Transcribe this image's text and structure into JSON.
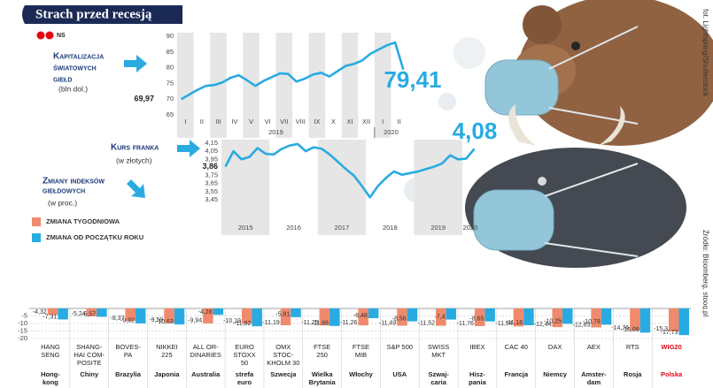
{
  "header": {
    "title": "Strach przed recesją",
    "author": "NS"
  },
  "credits": {
    "photo": "fot. Lightspring/Shutterstock",
    "source": "Źródło: Bloomberg, stooq.pl"
  },
  "chart_data": [
    {
      "type": "line",
      "title": [
        "Kapitalizacja",
        "światowych",
        "giełd"
      ],
      "subtitle": "(bln dol.)",
      "categories": [
        "I",
        null,
        "II",
        null,
        "III",
        null,
        "IV",
        null,
        "V",
        null,
        "VI",
        null,
        "VII",
        null,
        "VIII",
        null,
        "IX",
        null,
        "X",
        null,
        "XI",
        null,
        "XII",
        null,
        "I",
        null,
        "II",
        null
      ],
      "year_categories": [
        "2019",
        null,
        null,
        null,
        null,
        null,
        null,
        null,
        null,
        null,
        null,
        null,
        null,
        null,
        null,
        null,
        null,
        null,
        null,
        null,
        null,
        null,
        null,
        null,
        "2020",
        null,
        null,
        null
      ],
      "values": [
        69.97,
        71.5,
        73.0,
        74.2,
        74.5,
        75.3,
        76.8,
        77.6,
        76.0,
        74.2,
        75.8,
        77.0,
        78.2,
        78.0,
        75.6,
        76.5,
        77.8,
        78.4,
        77.2,
        78.9,
        80.6,
        81.2,
        82.3,
        84.4,
        85.8,
        87.1,
        88.0,
        79.41
      ],
      "value_labels": [
        "69,97",
        null,
        null,
        null,
        null,
        null,
        null,
        null,
        null,
        null,
        null,
        null,
        null,
        null,
        null,
        null,
        null,
        null,
        null,
        null,
        null,
        null,
        null,
        null,
        null,
        null,
        null,
        "79,41"
      ],
      "color": "#29abe2",
      "ylim": [
        65,
        90
      ],
      "yticks": [
        65,
        70,
        75,
        80,
        85,
        90
      ],
      "bands": true,
      "grid": false
    },
    {
      "type": "line",
      "title": [
        "Kurs franka"
      ],
      "subtitle": "(w złotych)",
      "categories": [
        "2015",
        null,
        null,
        null,
        null,
        null,
        "2016",
        null,
        null,
        null,
        null,
        null,
        "2017",
        null,
        null,
        null,
        null,
        null,
        "2018",
        null,
        null,
        null,
        null,
        null,
        "2019",
        null,
        null,
        null,
        null,
        null,
        "2020",
        null
      ],
      "values": [
        3.86,
        4.05,
        3.95,
        3.98,
        4.09,
        4.02,
        4.01,
        4.08,
        4.12,
        4.14,
        4.05,
        4.1,
        4.08,
        4.01,
        3.92,
        3.83,
        3.75,
        3.62,
        3.48,
        3.62,
        3.72,
        3.8,
        3.76,
        3.78,
        3.8,
        3.83,
        3.86,
        3.9,
        4.0,
        3.95,
        3.96,
        4.08
      ],
      "value_labels": [
        "3,86",
        null,
        null,
        null,
        null,
        null,
        null,
        null,
        null,
        null,
        null,
        null,
        null,
        null,
        null,
        null,
        null,
        null,
        null,
        null,
        null,
        null,
        null,
        null,
        null,
        null,
        null,
        null,
        null,
        null,
        null,
        "4,08"
      ],
      "color": "#29abe2",
      "ylim": [
        3.45,
        4.15
      ],
      "yticks": [
        {
          "value": 3.45,
          "label": "3,45"
        },
        {
          "value": 3.55,
          "label": "3,55"
        },
        {
          "value": 3.65,
          "label": "3,65"
        },
        {
          "value": 3.75,
          "label": "3,75"
        },
        {
          "value": 3.95,
          "label": "3,95"
        },
        {
          "value": 4.05,
          "label": "4,05"
        },
        {
          "value": 4.15,
          "label": "4,15"
        }
      ],
      "bands": true,
      "grid": false
    },
    {
      "type": "bar",
      "title": [
        "Zmiany indeksów",
        "giełdowych"
      ],
      "subtitle": "(w proc.)",
      "categories": [
        [
          "HANG",
          "SENG"
        ],
        [
          "SHANG-",
          "HAI COM-",
          "POSITE"
        ],
        [
          "BOVES-",
          "PA"
        ],
        [
          "NIKKEI",
          "225"
        ],
        [
          "ALL OR-",
          "DINARIES"
        ],
        [
          "EURO",
          "STOXX",
          "50"
        ],
        [
          "OMX",
          "STOC-",
          "KHOLM 30"
        ],
        [
          "FTSE",
          "250"
        ],
        [
          "FTSE",
          "MIB"
        ],
        [
          "S&P 500"
        ],
        [
          "SWISS",
          "MKT"
        ],
        [
          "IBEX"
        ],
        [
          "CAC 40"
        ],
        [
          "DAX"
        ],
        [
          "AEX"
        ],
        [
          "RTS"
        ],
        [
          "WIG20"
        ]
      ],
      "groups": [
        [
          "Hong-",
          "kong"
        ],
        [
          "Chiny"
        ],
        [
          "Brazylia"
        ],
        [
          "Japonia"
        ],
        [
          "Australia"
        ],
        [
          "strefa",
          "euro"
        ],
        [
          "Szwecja"
        ],
        [
          "Wielka",
          "Brytania"
        ],
        [
          "Włochy"
        ],
        [
          "USA"
        ],
        [
          "Szwaj-",
          "caria"
        ],
        [
          "Hisz-",
          "pania"
        ],
        [
          "Francja"
        ],
        [
          "Niemcy"
        ],
        [
          "Amster-",
          "dam"
        ],
        [
          "Rosja"
        ],
        [
          "Polska"
        ]
      ],
      "category_colors": [
        "#222222",
        "#222222",
        "#222222",
        "#222222",
        "#222222",
        "#222222",
        "#222222",
        "#222222",
        "#222222",
        "#222222",
        "#222222",
        "#222222",
        "#222222",
        "#222222",
        "#222222",
        "#222222",
        "#e30613"
      ],
      "series": [
        {
          "name": "ZMIANA TYGODNIOWA",
          "color": "#f08a6c",
          "values": [
            -4.32,
            -5.24,
            -8.37,
            -9.59,
            -9.94,
            -10.19,
            -11.19,
            -11.25,
            -11.26,
            -11.49,
            -11.52,
            -11.76,
            -11.94,
            -12.44,
            -12.63,
            -14.76,
            -15.3
          ],
          "value_labels": [
            "-4,32",
            "-5,24",
            "-8,37",
            "-9,59",
            "-9,94",
            "-10,19",
            "-11,19",
            "-11,25",
            "-11,26",
            "-11,49",
            "-11,52",
            "-11,76",
            "-11,94",
            "-12,44",
            "-12,63",
            "-14,76",
            "-15,3"
          ]
        },
        {
          "name": "ZMIANA OD POCZĄTKU ROKU",
          "color": "#29abe2",
          "values": [
            -7.31,
            -5.57,
            -9.92,
            -10.63,
            -4.28,
            -11.82,
            -5.81,
            -11.66,
            -6.48,
            -8.56,
            -7.4,
            -8.65,
            -11.18,
            -10.25,
            -10.78,
            -16.09,
            -17.73
          ],
          "value_labels": [
            "-7,31",
            "-5,57",
            "-9,92",
            "-10,63",
            "-4,28",
            "-11,82",
            "-5,81",
            "-11,66",
            "-6,48",
            "-8,56",
            "-7,4",
            "-8,65",
            "-11,18",
            "-10,25",
            "-10,78",
            "-16,09",
            "-17,73"
          ]
        }
      ],
      "ylim": [
        -20,
        0
      ],
      "yticks": [
        -5,
        -10,
        -15,
        -20
      ],
      "grid": true
    }
  ]
}
